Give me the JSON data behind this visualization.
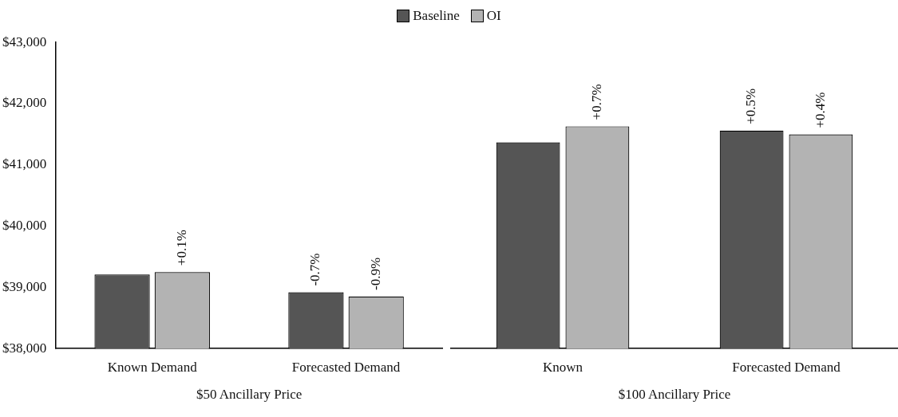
{
  "chart_data": [
    {
      "type": "bar",
      "categories": [
        "Known Demand",
        "Forecasted Demand"
      ],
      "xlabel": "$50 Ancillary Price",
      "ylim": [
        38000,
        43000
      ],
      "yticks": [
        {
          "value": 38000,
          "label": "$38,000"
        },
        {
          "value": 39000,
          "label": "$39,000"
        },
        {
          "value": 40000,
          "label": "$40,000"
        },
        {
          "value": 41000,
          "label": "$41,000"
        },
        {
          "value": 42000,
          "label": "$42,000"
        },
        {
          "value": 43000,
          "label": "$43,000"
        }
      ],
      "legend": "top",
      "grid": false,
      "series": [
        {
          "name": "Baseline",
          "color": "#555555",
          "values": [
            39210,
            38920
          ]
        },
        {
          "name": "OI",
          "color": "#b3b3b3",
          "values": [
            39250,
            38850
          ]
        }
      ],
      "annotations": [
        {
          "text": "+0.1%",
          "x": "Known Demand",
          "y": 39250
        },
        {
          "text": "-0.7%",
          "x": "Forecasted Demand",
          "y": 38920
        },
        {
          "text": "-0.9%",
          "x": "Forecasted Demand",
          "y": 38850
        }
      ]
    },
    {
      "type": "bar",
      "categories": [
        "Known",
        "Forecasted Demand"
      ],
      "xlabel": "$100 Ancillary Price",
      "ylim": [
        38000,
        43000
      ],
      "tick_labels": "x",
      "grid": false,
      "series": [
        {
          "color": "#555555",
          "values": [
            41340,
            41530
          ]
        },
        {
          "color": "#b3b3b3",
          "values": [
            41600,
            41470
          ]
        }
      ],
      "annotations": [
        {
          "text": "+0.7%",
          "x": "Known",
          "y": 41600
        },
        {
          "text": "+0.5%",
          "x": "Forecasted Demand",
          "y": 41530
        },
        {
          "text": "+0.4%",
          "x": "Forecasted Demand",
          "y": 41470
        }
      ]
    }
  ]
}
